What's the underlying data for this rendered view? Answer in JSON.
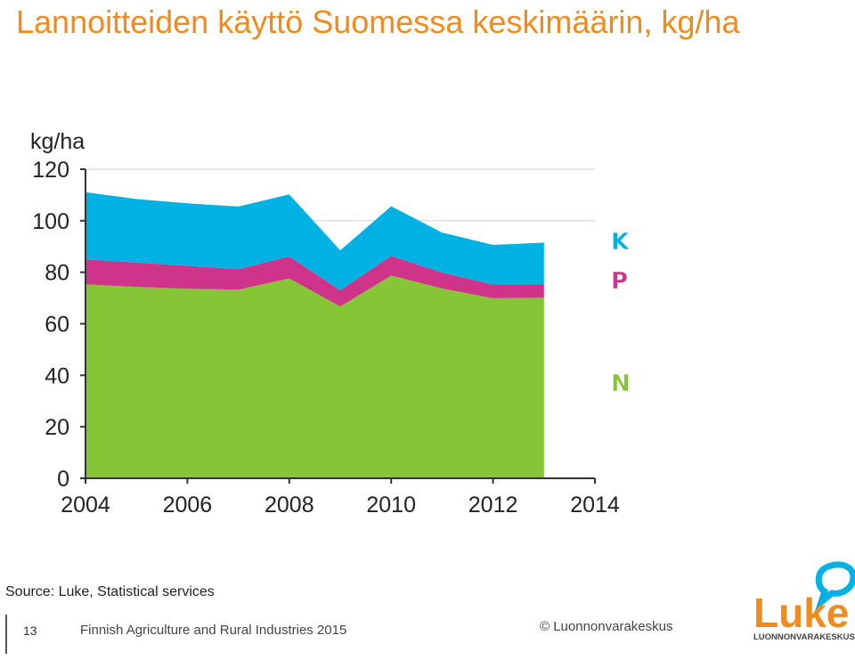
{
  "slide": {
    "title": "Lannoitteiden käyttö Suomessa keskimäärin, kg/ha",
    "source": "Source: Luke, Statistical services",
    "page_number": "13",
    "footer_text": "Finnish Agriculture and Rural Industries 2015",
    "copyright": "© Luonnonvarakeskus",
    "logo_text": "Luke",
    "logo_subtext": "LUONNONVARAKESKUS"
  },
  "colors": {
    "title": "#f08b1d",
    "N": "#86c536",
    "P": "#d0338a",
    "K": "#00b2e3",
    "logo": "#f08b1d"
  },
  "chart_data": {
    "type": "area",
    "stacked": true,
    "ylabel": "kg/ha",
    "ylim": [
      0,
      120
    ],
    "yticks": [
      0,
      20,
      40,
      60,
      80,
      100,
      120
    ],
    "xlim": [
      2004,
      2014
    ],
    "xticks": [
      2004,
      2006,
      2008,
      2010,
      2012,
      2014
    ],
    "grid": "horizontal at 120 and 100",
    "legend": "right, labels beside series",
    "x": [
      2004,
      2005,
      2006,
      2007,
      2008,
      2009,
      2010,
      2011,
      2012,
      2013
    ],
    "series": [
      {
        "name": "N",
        "values": [
          75.3,
          74.3,
          73.6,
          73.2,
          77.6,
          66.7,
          78.7,
          73.7,
          69.9,
          70.1
        ]
      },
      {
        "name": "P",
        "values": [
          9.7,
          9.5,
          8.9,
          8.0,
          8.5,
          6.3,
          7.6,
          6.2,
          5.3,
          5.1
        ]
      },
      {
        "name": "K",
        "values": [
          26.1,
          24.6,
          24.3,
          24.3,
          24.1,
          15.5,
          19.3,
          15.5,
          15.4,
          16.3
        ]
      }
    ]
  }
}
